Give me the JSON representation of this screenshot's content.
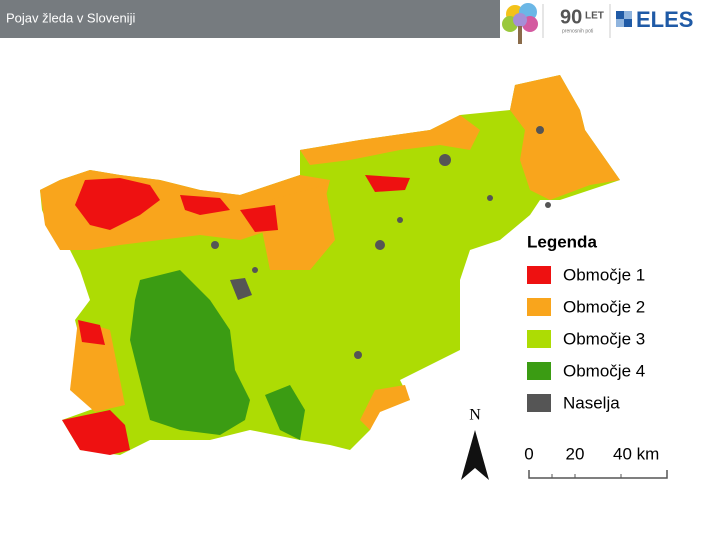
{
  "header": {
    "title": "Pojav žleda v Sloveniji"
  },
  "logos": {
    "anniversary": "90",
    "anniversary_suffix": "LET",
    "anniversary_caption": "prenosnih poti",
    "company": "ELES"
  },
  "map": {
    "north": "N",
    "legend": {
      "title": "Legenda",
      "items": [
        {
          "label": "Območje 1",
          "color": "#ee1111"
        },
        {
          "label": "Območje 2",
          "color": "#f9a51c"
        },
        {
          "label": "Območje 3",
          "color": "#addc04"
        },
        {
          "label": "Območje 4",
          "color": "#3b9c13"
        },
        {
          "label": "Naselja",
          "color": "#555555"
        }
      ]
    },
    "scale": {
      "labels": [
        "0",
        "20",
        "40 km"
      ]
    }
  }
}
